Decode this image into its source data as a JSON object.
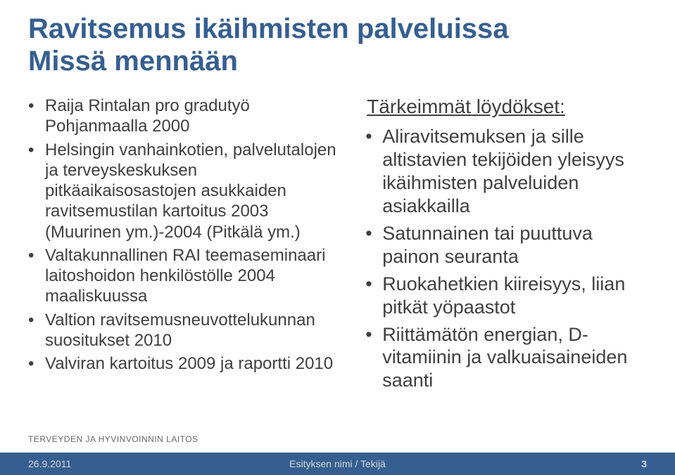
{
  "title_line1": "Ravitsemus ikäihmisten palveluissa",
  "title_line2": "Missä mennään",
  "left_bullets": [
    "Raija Rintalan pro gradutyö Pohjanmaalla 2000",
    "Helsingin vanhainkotien, palvelutalojen ja terveyskeskuksen pitkäaikaisosastojen asukkaiden ravitsemustilan kartoitus 2003 (Muurinen ym.)-2004 (Pitkälä ym.)",
    "Valtakunnallinen RAI teemaseminaari laitoshoidon henkilöstölle 2004 maaliskuussa",
    "Valtion ravitsemusneuvottelukunnan suositukset 2010",
    "Valviran kartoitus 2009 ja raportti 2010"
  ],
  "right_heading": "Tärkeimmät löydökset:",
  "right_bullets": [
    "Aliravitsemuksen ja sille altistavien tekijöiden yleisyys ikäihmisten palveluiden asiakkailla",
    "Satunnainen tai puuttuva painon seuranta",
    "Ruokahetkien kiireisyys, liian pitkät yöpaastot",
    "Riittämätön energian, D-vitamiinin ja valkuaisaineiden saanti"
  ],
  "logo_text": "TERVEYDEN JA HYVINVOINNIN LAITOS",
  "footer": {
    "date": "26.9.2011",
    "center": "Esityksen nimi / Tekijä",
    "page": "3"
  },
  "colors": {
    "title": "#365f91",
    "body_text": "#3f3f3f",
    "footer_bg": "#365f91",
    "footer_text": "#d6d6d6",
    "logo_text": "#666666",
    "background": "#ffffff"
  },
  "typography": {
    "title_fontsize": 40,
    "left_bullet_fontsize": 24,
    "right_heading_fontsize": 28,
    "right_bullet_fontsize": 27,
    "footer_fontsize": 14,
    "logo_fontsize": 12
  }
}
